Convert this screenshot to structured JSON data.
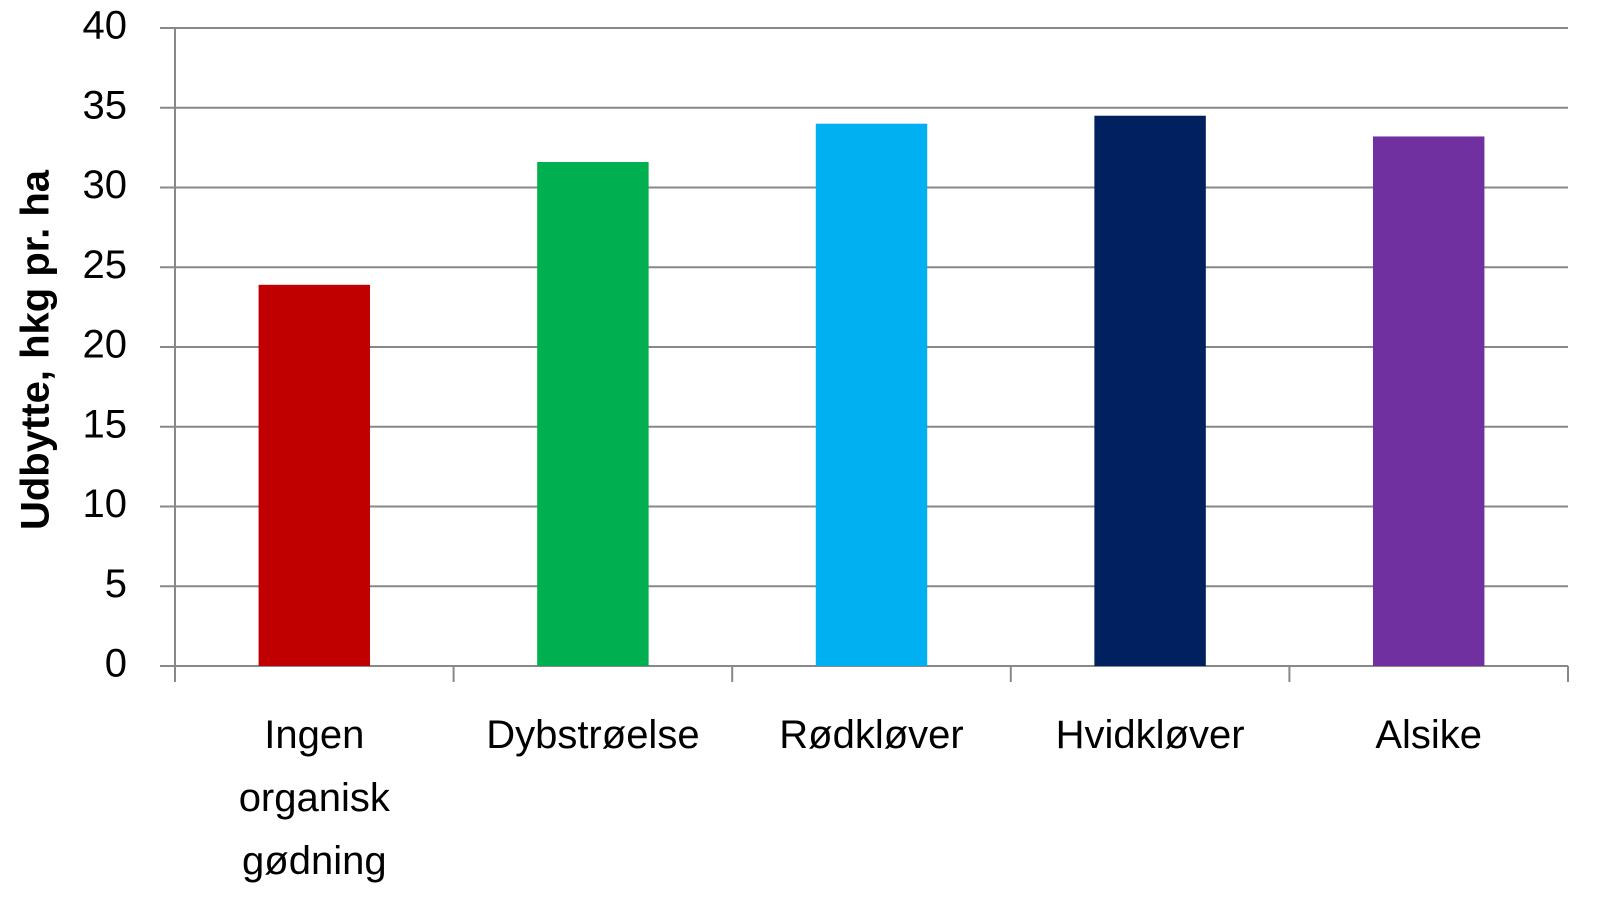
{
  "chart_data": {
    "type": "bar",
    "y_label": "Udbytte, hkg pr. ha",
    "categories": [
      "Ingen organisk gødning",
      "Dybstrøelse",
      "Rødkløver",
      "Hvidkløver",
      "Alsike"
    ],
    "values": [
      23.9,
      31.6,
      34.0,
      34.5,
      33.2
    ],
    "colors": [
      "#c00000",
      "#00b050",
      "#00b0f0",
      "#002060",
      "#7030a0"
    ],
    "ylim": [
      0,
      40
    ],
    "yticks": [
      0,
      5,
      10,
      15,
      20,
      25,
      30,
      35,
      40
    ],
    "grid": true
  }
}
